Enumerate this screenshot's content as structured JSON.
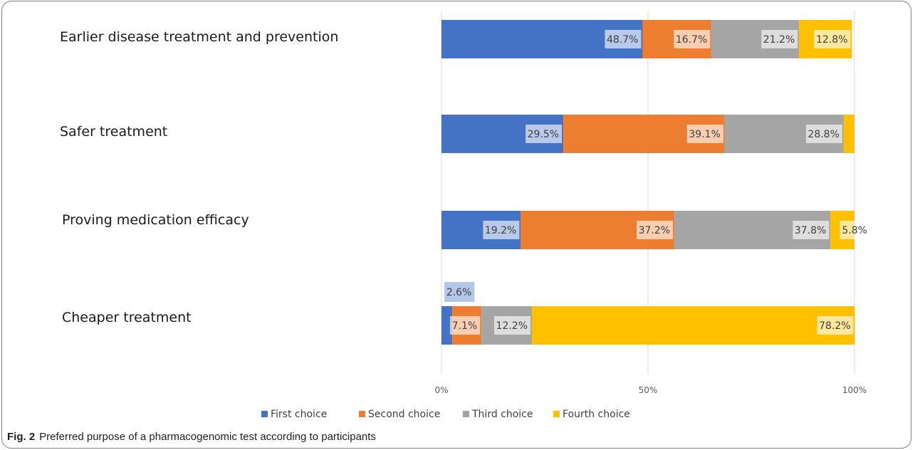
{
  "chart_data": {
    "type": "bar",
    "orientation": "horizontal",
    "stacked": true,
    "categories": [
      "Earlier disease treatment and prevention",
      "Safer treatment",
      "Proving medication efficacy",
      "Cheaper treatment"
    ],
    "series": [
      {
        "name": "First choice",
        "color": "#4472c4",
        "values": [
          48.7,
          29.5,
          19.2,
          2.6
        ],
        "labels": [
          "48.7%",
          "29.5%",
          "19.2%",
          "2.6%"
        ]
      },
      {
        "name": "Second choice",
        "color": "#ed7d31",
        "values": [
          16.7,
          39.1,
          37.2,
          7.1
        ],
        "labels": [
          "16.7%",
          "39.1%",
          "37.2%",
          "7.1%"
        ]
      },
      {
        "name": "Third choice",
        "color": "#a5a5a5",
        "values": [
          21.2,
          28.8,
          37.8,
          12.2
        ],
        "labels": [
          "21.2%",
          "28.8%",
          "37.8%",
          "12.2%"
        ]
      },
      {
        "name": "Fourth choice",
        "color": "#ffc000",
        "values": [
          12.8,
          2.6,
          5.8,
          78.2
        ],
        "labels": [
          "12.8%",
          "",
          "5.8%",
          "78.2%"
        ]
      }
    ],
    "x_ticks": [
      "0%",
      "50%",
      "100%"
    ],
    "xlim": [
      0,
      100
    ],
    "grid": true,
    "legend_position": "bottom"
  },
  "caption": {
    "prefix": "Fig. 2",
    "text": "Preferred purpose of a pharmacogenomic test according to participants"
  }
}
